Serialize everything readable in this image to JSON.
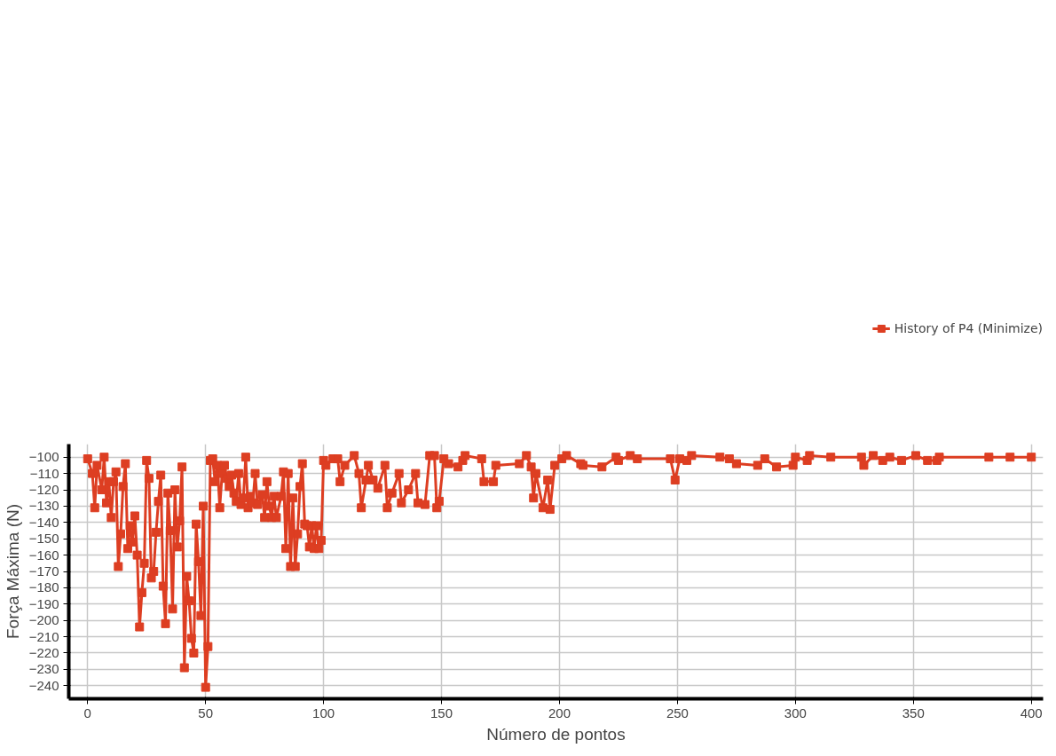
{
  "chart_data": {
    "type": "line",
    "xlabel": "Número de pontos",
    "ylabel": "Força Máxima (N)",
    "xlim": [
      -8,
      405
    ],
    "ylim": [
      -248,
      -92
    ],
    "xticks": [
      0,
      50,
      100,
      150,
      200,
      250,
      300,
      350,
      400
    ],
    "yticks": [
      -100,
      -110,
      -120,
      -130,
      -140,
      -150,
      -160,
      -170,
      -180,
      -190,
      -200,
      -210,
      -220,
      -230,
      -240
    ],
    "grid": true,
    "legend": "top right",
    "marker": "square",
    "line_style": "solid",
    "series": [
      {
        "name": "History of P4 (Minimize)",
        "color": "#dd3e22",
        "x": [
          0,
          2,
          3,
          4,
          6,
          7,
          8,
          9,
          10,
          11,
          12,
          13,
          14,
          15,
          16,
          17,
          18,
          19,
          20,
          21,
          22,
          23,
          24,
          25,
          26,
          27,
          28,
          29,
          30,
          31,
          32,
          33,
          34,
          35,
          36,
          37,
          38,
          39,
          40,
          41,
          42,
          43,
          44,
          45,
          46,
          47,
          48,
          49,
          50,
          51,
          52,
          53,
          54,
          55,
          56,
          57,
          58,
          59,
          60,
          61,
          62,
          63,
          64,
          65,
          66,
          67,
          68,
          69,
          70,
          71,
          72,
          74,
          75,
          76,
          77,
          78,
          79,
          80,
          82,
          83,
          84,
          85,
          86,
          87,
          88,
          89,
          90,
          91,
          92,
          93,
          94,
          95,
          96,
          97,
          98,
          99,
          100,
          101,
          104,
          106,
          107,
          109,
          113,
          115,
          116,
          118,
          119,
          121,
          123,
          126,
          127,
          129,
          132,
          133,
          136,
          139,
          140,
          143,
          145,
          147,
          148,
          149,
          151,
          153,
          157,
          159,
          160,
          167,
          168,
          172,
          173,
          183,
          186,
          188,
          189,
          190,
          193,
          195,
          196,
          198,
          201,
          203,
          209,
          210,
          218,
          224,
          225,
          230,
          233,
          247,
          249,
          251,
          254,
          256,
          268,
          272,
          275,
          284,
          287,
          292,
          299,
          300,
          305,
          306,
          315,
          328,
          329,
          333,
          337,
          340,
          345,
          351,
          356,
          360,
          361,
          382,
          391,
          400
        ],
        "values": [
          -101,
          -110,
          -131,
          -105,
          -120,
          -100,
          -128,
          -115,
          -137,
          -115,
          -109,
          -167,
          -147,
          -118,
          -104,
          -156,
          -142,
          -152,
          -136,
          -160,
          -204,
          -183,
          -165,
          -102,
          -113,
          -174,
          -170,
          -146,
          -127,
          -111,
          -179,
          -202,
          -122,
          -145,
          -193,
          -120,
          -155,
          -139,
          -106,
          -229,
          -173,
          -188,
          -211,
          -220,
          -141,
          -164,
          -197,
          -130,
          -241,
          -216,
          -102,
          -101,
          -115,
          -105,
          -131,
          -110,
          -105,
          -113,
          -118,
          -111,
          -122,
          -127,
          -110,
          -129,
          -125,
          -100,
          -131,
          -124,
          -128,
          -110,
          -129,
          -123,
          -137,
          -115,
          -130,
          -137,
          -124,
          -137,
          -124,
          -109,
          -156,
          -110,
          -167,
          -125,
          -167,
          -147,
          -118,
          -104,
          -141,
          -142,
          -155,
          -142,
          -156,
          -142,
          -156,
          -151,
          -102,
          -105,
          -101,
          -101,
          -115,
          -105,
          -99,
          -110,
          -131,
          -114,
          -105,
          -114,
          -119,
          -105,
          -131,
          -122,
          -110,
          -128,
          -120,
          -110,
          -128,
          -129,
          -99,
          -99,
          -131,
          -127,
          -101,
          -104,
          -106,
          -102,
          -99,
          -101,
          -115,
          -115,
          -105,
          -104,
          -99,
          -106,
          -125,
          -110,
          -131,
          -114,
          -132,
          -105,
          -101,
          -99,
          -104,
          -105,
          -106,
          -100,
          -102,
          -99,
          -101,
          -101,
          -114,
          -101,
          -102,
          -99,
          -100,
          -101,
          -104,
          -105,
          -101,
          -106,
          -105,
          -100,
          -102,
          -99,
          -100,
          -100,
          -105,
          -99,
          -102,
          -100,
          -102,
          -99,
          -102,
          -102,
          -100,
          -100,
          -100,
          -100
        ]
      }
    ]
  }
}
